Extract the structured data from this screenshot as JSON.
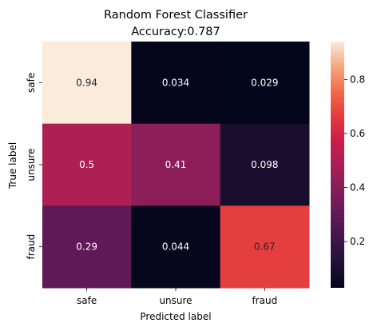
{
  "chart_data": {
    "type": "heatmap",
    "title": "Random Forest Classifier",
    "subtitle": "Accuracy:0.787",
    "xlabel": "Predicted label",
    "ylabel": "True label",
    "x_categories": [
      "safe",
      "unsure",
      "fraud"
    ],
    "y_categories": [
      "safe",
      "unsure",
      "fraud"
    ],
    "cell_labels": [
      [
        "0.94",
        "0.034",
        "0.029"
      ],
      [
        "0.5",
        "0.41",
        "0.098"
      ],
      [
        "0.29",
        "0.044",
        "0.67"
      ]
    ],
    "values": [
      [
        0.94,
        0.034,
        0.029
      ],
      [
        0.5,
        0.41,
        0.098
      ],
      [
        0.29,
        0.044,
        0.67
      ]
    ],
    "colorbar": {
      "range": [
        0.029,
        0.94
      ],
      "tick_values": [
        0.2,
        0.4,
        0.6,
        0.8
      ],
      "tick_labels": [
        "0.2",
        "0.4",
        "0.6",
        "0.8"
      ]
    },
    "colormap": "rocket",
    "grid": false,
    "legend": "colorbar-right"
  }
}
